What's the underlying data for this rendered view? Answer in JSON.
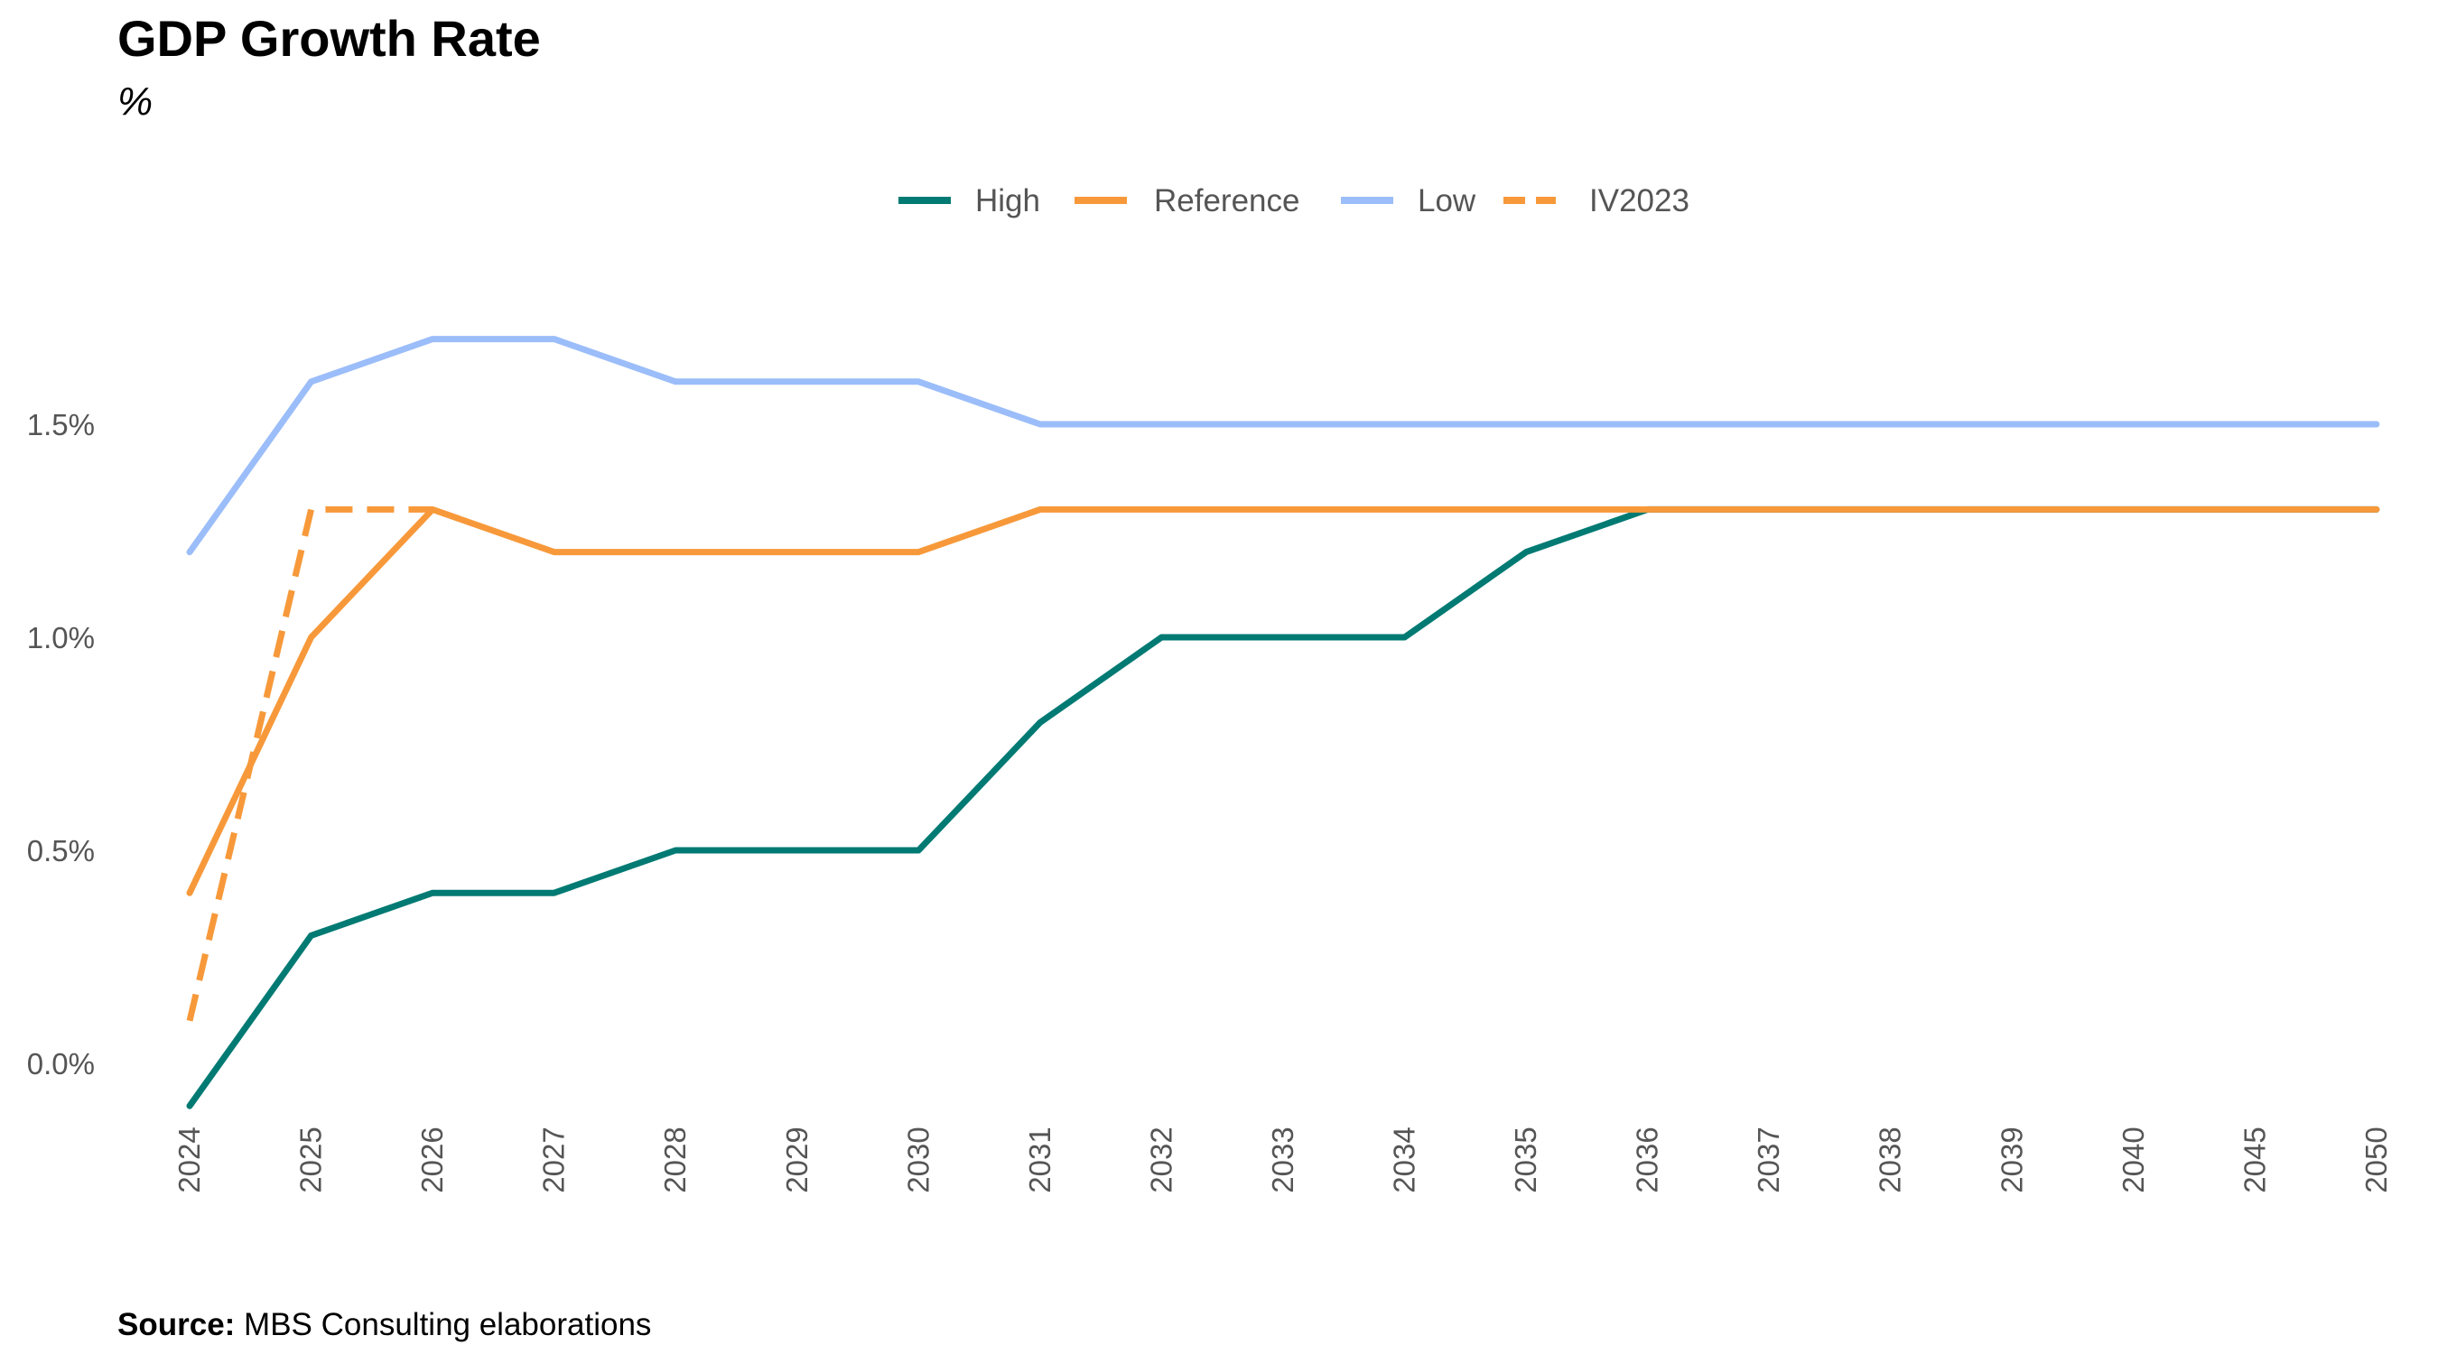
{
  "title": "GDP Growth Rate",
  "subtitle": "%",
  "source": {
    "label": "Source:",
    "text": "MBS Consulting elaborations"
  },
  "chart_data": {
    "type": "line",
    "title": "GDP Growth Rate",
    "ylabel": "%",
    "xlabel": "",
    "categories": [
      "2024",
      "2025",
      "2026",
      "2027",
      "2028",
      "2029",
      "2030",
      "2031",
      "2032",
      "2033",
      "2034",
      "2035",
      "2036",
      "2037",
      "2038",
      "2039",
      "2040",
      "2045",
      "2050"
    ],
    "ylim": [
      -0.1,
      1.8
    ],
    "yticks": [
      0.0,
      0.5,
      1.0,
      1.5
    ],
    "ytick_labels": [
      "0.0%",
      "0.5%",
      "1.0%",
      "1.5%"
    ],
    "grid": false,
    "legend_position": "top",
    "series": [
      {
        "name": "High",
        "color": "#007A73",
        "dash": false,
        "values": [
          -0.1,
          0.3,
          0.4,
          0.4,
          0.5,
          0.5,
          0.5,
          0.8,
          1.0,
          1.0,
          1.0,
          1.2,
          1.3,
          1.3,
          1.3,
          1.3,
          1.3,
          1.3,
          1.3
        ]
      },
      {
        "name": "Reference",
        "color": "#F7993A",
        "dash": false,
        "values": [
          0.4,
          1.0,
          1.3,
          1.2,
          1.2,
          1.2,
          1.2,
          1.3,
          1.3,
          1.3,
          1.3,
          1.3,
          1.3,
          1.3,
          1.3,
          1.3,
          1.3,
          1.3,
          1.3
        ]
      },
      {
        "name": "Low",
        "color": "#9BBDF9",
        "dash": false,
        "values": [
          1.2,
          1.6,
          1.7,
          1.7,
          1.6,
          1.6,
          1.6,
          1.5,
          1.5,
          1.5,
          1.5,
          1.5,
          1.5,
          1.5,
          1.5,
          1.5,
          1.5,
          1.5,
          1.5
        ]
      },
      {
        "name": "IV2023",
        "color": "#F7993A",
        "dash": true,
        "values": [
          0.1,
          1.3,
          1.3,
          null,
          null,
          null,
          null,
          null,
          null,
          null,
          null,
          null,
          null,
          null,
          null,
          null,
          null,
          null,
          null
        ]
      }
    ]
  }
}
